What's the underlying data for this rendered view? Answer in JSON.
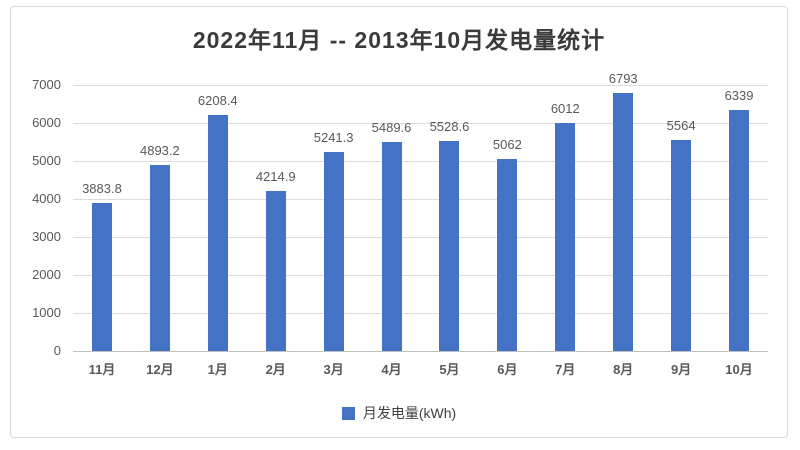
{
  "chart_data": {
    "type": "bar",
    "title": "2022年11月 -- 2013年10月发电量统计",
    "legend": "月发电量(kWh)",
    "categories": [
      "11月",
      "12月",
      "1月",
      "2月",
      "3月",
      "4月",
      "5月",
      "6月",
      "7月",
      "8月",
      "9月",
      "10月"
    ],
    "values": [
      3883.8,
      4893.2,
      6208.4,
      4214.9,
      5241.3,
      5489.6,
      5528.6,
      5062,
      6012,
      6793,
      5564,
      6339
    ],
    "data_labels": [
      "3883.8",
      "4893.2",
      "6208.4",
      "4214.9",
      "5241.3",
      "5489.6",
      "5528.6",
      "5062",
      "6012",
      "6793",
      "5564",
      "6339"
    ],
    "yticks": [
      0,
      1000,
      2000,
      3000,
      4000,
      5000,
      6000,
      7000
    ],
    "ylim": [
      0,
      7000
    ],
    "xlabel": "",
    "ylabel": "",
    "grid": true,
    "legend_position": "bottom",
    "bar_color": "#4472C4",
    "grid_color": "#dcdcdc",
    "axis_line_color": "#bfbfbf",
    "label_color": "#595959",
    "title_color": "#3a3a3a"
  }
}
